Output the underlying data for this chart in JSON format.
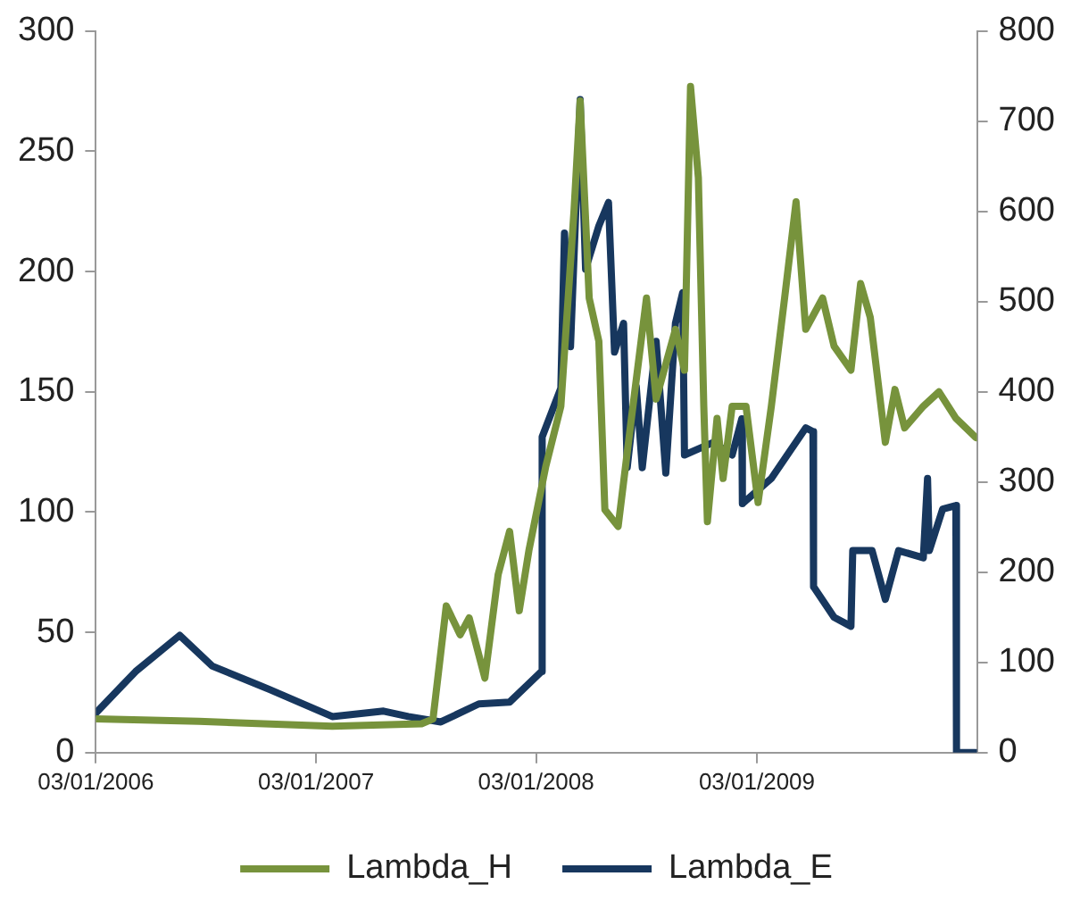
{
  "chart_data": {
    "type": "line",
    "xlim": [
      "2006-01-03",
      "2010-01-03"
    ],
    "xticks": [
      {
        "value": "2006-01-03",
        "label": "03/01/2006"
      },
      {
        "value": "2007-01-03",
        "label": "03/01/2007"
      },
      {
        "value": "2008-01-03",
        "label": "03/01/2008"
      },
      {
        "value": "2009-01-03",
        "label": "03/01/2009"
      }
    ],
    "ylim": [
      0,
      300
    ],
    "yticks": [
      0,
      50,
      100,
      150,
      200,
      250,
      300
    ],
    "y2lim": [
      0,
      800
    ],
    "y2ticks": [
      0,
      100,
      200,
      300,
      400,
      500,
      600,
      700,
      800
    ],
    "grid": false,
    "legend": "bottom",
    "marker": "none",
    "line_style": "solid",
    "series": [
      {
        "name": "Lambda_H",
        "color": "#77933c",
        "axis": "y",
        "x": [
          "2006-01-03",
          "2006-06-23",
          "2007-01-30",
          "2007-06-27",
          "2007-07-16",
          "2007-08-07",
          "2007-08-30",
          "2007-09-14",
          "2007-10-10",
          "2007-11-01",
          "2007-11-20",
          "2007-12-06",
          "2007-12-22",
          "2008-01-19",
          "2008-02-13",
          "2008-03-06",
          "2008-03-16",
          "2008-03-31",
          "2008-04-16",
          "2008-04-26",
          "2008-05-18",
          "2008-06-09",
          "2008-07-04",
          "2008-07-20",
          "2008-08-21",
          "2008-09-05",
          "2008-09-15",
          "2008-09-28",
          "2008-10-07",
          "2008-10-13",
          "2008-10-29",
          "2008-11-08",
          "2008-11-23",
          "2008-12-16",
          "2009-01-05",
          "2009-01-27",
          "2009-02-18",
          "2009-03-09",
          "2009-03-25",
          "2009-04-22",
          "2009-05-11",
          "2009-06-08",
          "2009-06-24",
          "2009-07-10",
          "2009-08-04",
          "2009-08-20",
          "2009-09-05",
          "2009-10-06",
          "2009-11-01",
          "2009-11-29",
          "2010-01-01"
        ],
        "values": [
          14,
          13,
          11,
          12,
          14,
          61,
          49,
          56,
          31,
          74,
          92,
          59,
          84,
          119,
          144,
          226,
          271,
          189,
          171,
          101,
          94,
          139,
          189,
          147,
          176,
          159,
          277,
          239,
          144,
          96,
          139,
          114,
          144,
          144,
          104,
          144,
          189,
          229,
          176,
          189,
          169,
          159,
          195,
          181,
          129,
          151,
          135,
          144,
          150,
          139,
          131
        ]
      },
      {
        "name": "Lambda_E",
        "color": "#17375e",
        "axis": "y2",
        "x": [
          "2006-01-03",
          "2006-03-10",
          "2006-05-22",
          "2006-07-15",
          "2006-10-18",
          "2007-01-30",
          "2007-04-25",
          "2007-06-05",
          "2007-07-29",
          "2007-09-30",
          "2007-11-20",
          "2008-01-12",
          "2008-01-13",
          "2008-02-13",
          "2008-02-19",
          "2008-02-29",
          "2008-03-16",
          "2008-03-25",
          "2008-04-16",
          "2008-05-02",
          "2008-05-12",
          "2008-05-27",
          "2008-06-02",
          "2008-06-17",
          "2008-06-27",
          "2008-07-20",
          "2008-08-05",
          "2008-08-21",
          "2008-09-02",
          "2008-09-05",
          "2008-10-23",
          "2008-11-23",
          "2008-12-09",
          "2008-12-10",
          "2009-01-27",
          "2009-03-25",
          "2009-04-06",
          "2009-04-07",
          "2009-05-11",
          "2009-06-08",
          "2009-06-11",
          "2009-07-13",
          "2009-08-04",
          "2009-08-26",
          "2009-10-06",
          "2009-10-13",
          "2009-10-16",
          "2009-11-07",
          "2009-11-29",
          "2009-11-30",
          "2010-01-01"
        ],
        "values": [
          44,
          90,
          130,
          96,
          70,
          40,
          46,
          40,
          34,
          54,
          56,
          90,
          350,
          404,
          576,
          450,
          724,
          536,
          584,
          610,
          444,
          476,
          316,
          406,
          316,
          456,
          310,
          476,
          510,
          330,
          344,
          330,
          370,
          276,
          304,
          360,
          356,
          184,
          150,
          140,
          224,
          224,
          170,
          224,
          216,
          304,
          224,
          270,
          274,
          0,
          0
        ]
      }
    ]
  }
}
